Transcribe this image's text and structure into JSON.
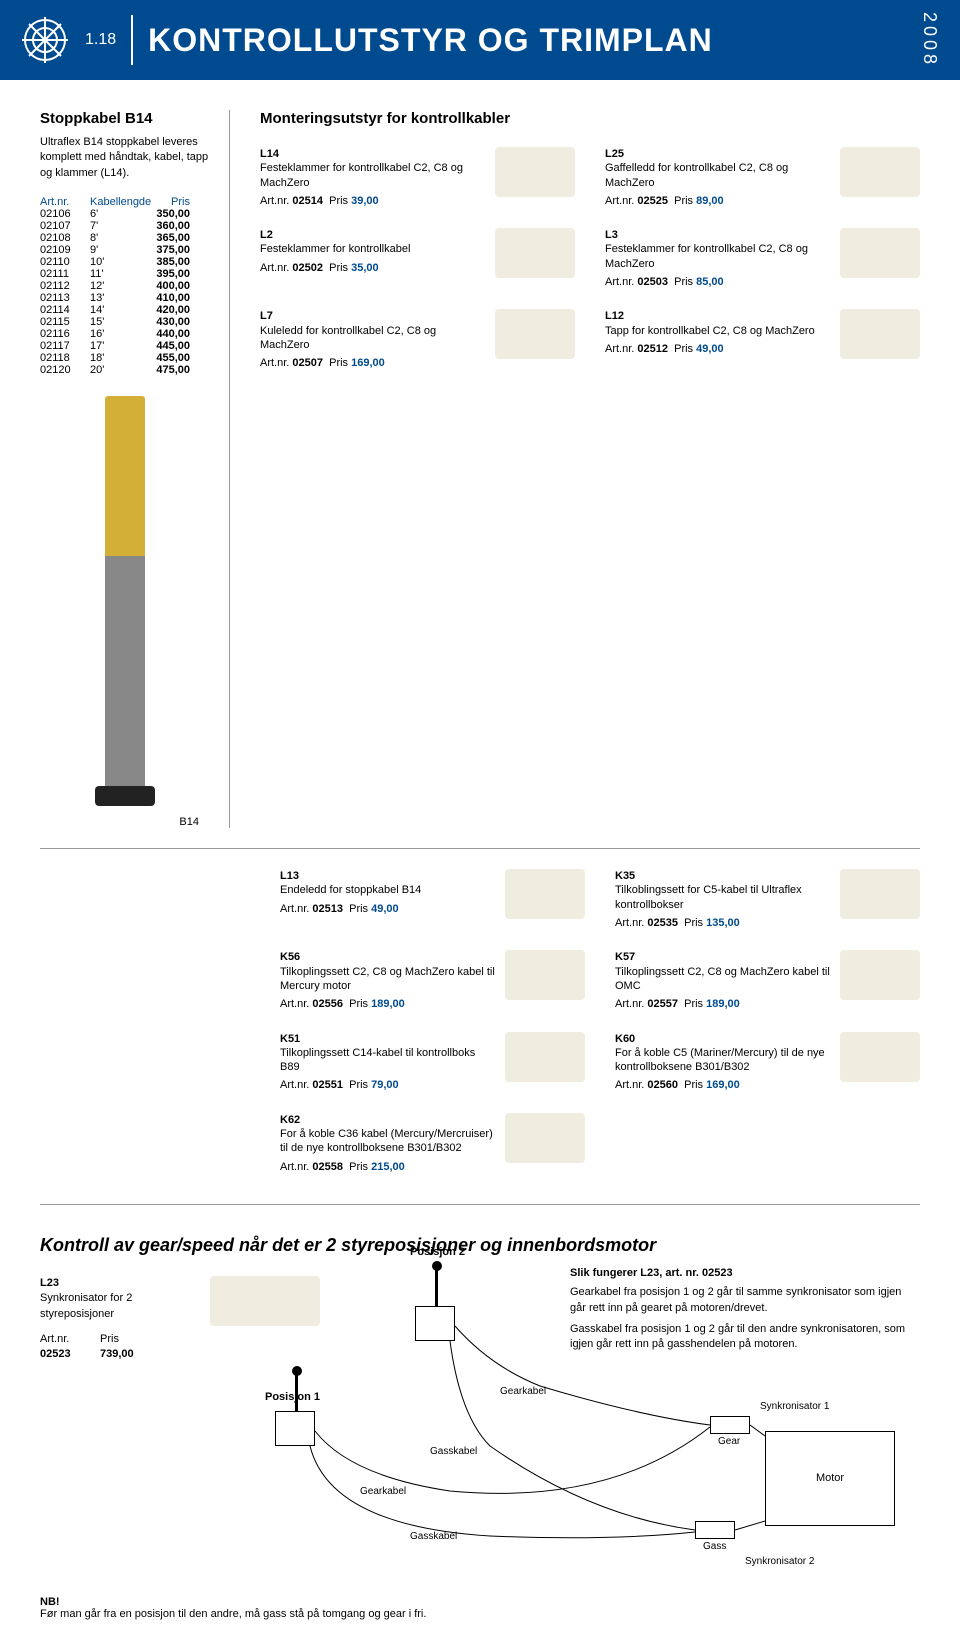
{
  "header": {
    "page_num": "1.18",
    "title": "KONTROLLUTSTYR OG TRIMPLAN",
    "year": "2008",
    "brand_color": "#004a8f"
  },
  "left": {
    "title": "Stoppkabel B14",
    "desc": "Ultraflex B14 stoppkabel leveres komplett med håndtak, kabel, tapp og klammer (L14).",
    "cols": [
      "Art.nr.",
      "Kabellengde",
      "Pris"
    ],
    "rows": [
      [
        "02106",
        "6'",
        "350,00"
      ],
      [
        "02107",
        "7'",
        "360,00"
      ],
      [
        "02108",
        "8'",
        "365,00"
      ],
      [
        "02109",
        "9'",
        "375,00"
      ],
      [
        "02110",
        "10'",
        "385,00"
      ],
      [
        "02111",
        "11'",
        "395,00"
      ],
      [
        "02112",
        "12'",
        "400,00"
      ],
      [
        "02113",
        "13'",
        "410,00"
      ],
      [
        "02114",
        "14'",
        "420,00"
      ],
      [
        "02115",
        "15'",
        "430,00"
      ],
      [
        "02116",
        "16'",
        "440,00"
      ],
      [
        "02117",
        "17'",
        "445,00"
      ],
      [
        "02118",
        "18'",
        "455,00"
      ],
      [
        "02120",
        "20'",
        "475,00"
      ]
    ],
    "b14_label": "B14"
  },
  "mount": {
    "title": "Monteringsutstyr for kontrollkabler",
    "items_top": [
      {
        "code": "L14",
        "desc": "Festeklammer for kontrollkabel C2, C8 og MachZero",
        "art": "02514",
        "pris": "39,00"
      },
      {
        "code": "L25",
        "desc": "Gaffelledd for kontrollkabel C2, C8 og MachZero",
        "art": "02525",
        "pris": "89,00"
      },
      {
        "code": "L2",
        "desc": "Festeklammer for kontrollkabel",
        "art": "02502",
        "pris": "35,00"
      },
      {
        "code": "L3",
        "desc": "Festeklammer for kontrollkabel C2, C8 og MachZero",
        "art": "02503",
        "pris": "85,00"
      },
      {
        "code": "L7",
        "desc": "Kuleledd for kontrollkabel C2, C8 og MachZero",
        "art": "02507",
        "pris": "169,00"
      },
      {
        "code": "L12",
        "desc": "Tapp for kontrollkabel C2, C8 og MachZero",
        "art": "02512",
        "pris": "49,00"
      }
    ],
    "items_full": [
      {
        "code": "L13",
        "desc": "Endeledd for stoppkabel B14",
        "art": "02513",
        "pris": "49,00"
      },
      {
        "code": "K35",
        "desc": "Tilkoblingssett for C5-kabel til Ultraflex kontrollbokser",
        "art": "02535",
        "pris": "135,00"
      },
      {
        "code": "K56",
        "desc": "Tilkoplingssett C2, C8 og MachZero kabel til Mercury motor",
        "art": "02556",
        "pris": "189,00"
      },
      {
        "code": "K57",
        "desc": "Tilkoplingssett C2, C8 og MachZero kabel til OMC",
        "art": "02557",
        "pris": "189,00"
      },
      {
        "code": "K51",
        "desc": "Tilkoplingssett C14-kabel til kontrollboks B89",
        "art": "02551",
        "pris": "79,00"
      },
      {
        "code": "K60",
        "desc": "For å koble C5 (Mariner/Mercury) til de nye kontrollboksene B301/B302",
        "art": "02560",
        "pris": "169,00"
      },
      {
        "code": "K62",
        "desc": "For å koble C36 kabel (Mercury/Mercruiser) til de nye kontrollboksene B301/B302",
        "art": "02558",
        "pris": "215,00"
      }
    ],
    "art_prefix": "Art.nr.",
    "pris_label": "Pris"
  },
  "section2": {
    "title": "Kontroll av gear/speed når det er 2 styreposisjoner og innenbordsmotor",
    "l23": {
      "code": "L23",
      "desc": "Synkronisator for 2 styreposisjoner",
      "art_label": "Art.nr.",
      "pris_label": "Pris",
      "art": "02523",
      "pris": "739,00"
    },
    "pos1": "Posisjon 1",
    "pos2": "Posisjon 2",
    "gearkabel": "Gearkabel",
    "gasskabel": "Gasskabel",
    "gear": "Gear",
    "gass": "Gass",
    "motor": "Motor",
    "sync1": "Synkronisator 1",
    "sync2": "Synkronisator 2",
    "explain_title": "Slik fungerer L23, art. nr. 02523",
    "explain_p1": "Gearkabel fra posisjon 1 og 2 går til samme synkronisator som igjen går rett inn på gearet på motoren/drevet.",
    "explain_p2": "Gasskabel fra posisjon 1 og 2 går til den andre synkronisatoren, som igjen går rett inn på gasshendelen på motoren."
  },
  "nb": {
    "title": "NB!",
    "text": "Før man går fra en posisjon til den andre, må gass stå på tomgang og gear i fri."
  }
}
